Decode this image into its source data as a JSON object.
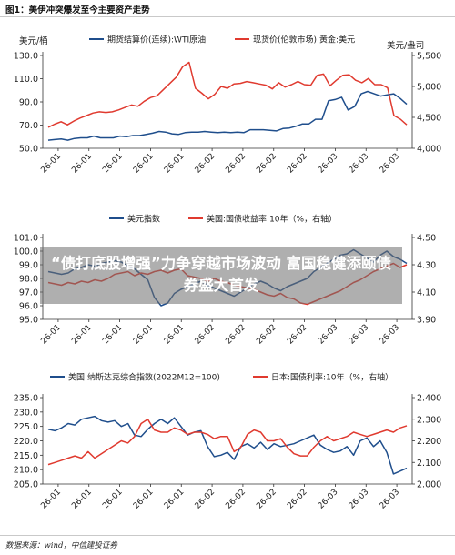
{
  "figure": {
    "title": "图1：美伊冲突爆发至今主要资产走势",
    "source": "数据来源：wind，中信建投证券"
  },
  "overlay": {
    "headline": "“债打底股增强”力争穿越市场波动 富国稳健添颐债券盛大首发"
  },
  "colors": {
    "blue": "#1f4e8c",
    "red": "#e03a2f",
    "axis": "#333333",
    "grid": "#e3e3e3"
  },
  "chart_data": [
    {
      "type": "line",
      "x_tick_labels": [
        "26-01",
        "26-01",
        "26-01",
        "26-01",
        "26-01",
        "26-02",
        "26-02",
        "26-02",
        "26-02",
        "26-03",
        "26-03",
        "26-03"
      ],
      "ylabel_left": "美元/桶",
      "ylabel_right": "美元/盎司",
      "ylim_left": [
        50,
        130
      ],
      "yticks_left": [
        "50.0",
        "70.0",
        "90.0",
        "110.0",
        "130.0"
      ],
      "ylim_right": [
        4000,
        5500
      ],
      "yticks_right": [
        "4,000",
        "4,500",
        "5,000",
        "5,500"
      ],
      "grid": false,
      "legend_position": "top",
      "series": [
        {
          "name": "期货结算价(连续):WTI原油",
          "axis": "left",
          "color": "#1f4e8c",
          "values": [
            57,
            57.5,
            58,
            57,
            58.5,
            59,
            59,
            60.5,
            59,
            59,
            59,
            60.5,
            60,
            61,
            61,
            62,
            63,
            64.5,
            64,
            62.5,
            62,
            63.5,
            64,
            64,
            64.5,
            64,
            63.5,
            64,
            63.5,
            64,
            63.5,
            66,
            66,
            66,
            65.5,
            65,
            67,
            67.5,
            69,
            71,
            71,
            75,
            75,
            91,
            92,
            94,
            83,
            86,
            97,
            99,
            97,
            95,
            96,
            97,
            93,
            88
          ]
        },
        {
          "name": "现货价(伦敦市场):黄金:美元",
          "axis": "right",
          "color": "#e03a2f",
          "values": [
            4340,
            4390,
            4430,
            4380,
            4440,
            4490,
            4530,
            4570,
            4590,
            4580,
            4590,
            4620,
            4660,
            4700,
            4680,
            4760,
            4820,
            4850,
            4950,
            5050,
            5150,
            5320,
            5390,
            4970,
            4890,
            4800,
            4870,
            5000,
            4970,
            5040,
            5050,
            5080,
            5060,
            5040,
            5020,
            4960,
            5060,
            4990,
            5030,
            5080,
            5030,
            5020,
            5180,
            5200,
            5010,
            5100,
            5180,
            5190,
            5100,
            5060,
            5130,
            5030,
            5030,
            4980,
            4530,
            4470,
            4380
          ]
        }
      ]
    },
    {
      "type": "line",
      "x_tick_labels": [
        "26-01",
        "26-01",
        "26-01",
        "26-01",
        "26-01",
        "26-02",
        "26-02",
        "26-02",
        "26-02",
        "26-03",
        "26-03",
        "26-03"
      ],
      "ylim_left": [
        95.0,
        101.0
      ],
      "yticks_left": [
        "95.0",
        "96.0",
        "97.0",
        "98.0",
        "99.0",
        "100.0",
        "101.0"
      ],
      "ylim_right": [
        3.9,
        4.5
      ],
      "yticks_right": [
        "3.90",
        "4.10",
        "4.30",
        "4.50"
      ],
      "grid": false,
      "legend_position": "top",
      "series": [
        {
          "name": "美元指数",
          "axis": "left",
          "color": "#1f4e8c",
          "values": [
            98.5,
            98.4,
            98.3,
            98.4,
            98.7,
            98.8,
            99.0,
            98.9,
            99.1,
            99.2,
            99.3,
            99.2,
            98.9,
            98.7,
            98.3,
            97.9,
            96.6,
            96.0,
            96.2,
            96.9,
            97.2,
            97.4,
            97.6,
            97.8,
            97.5,
            97.3,
            97.1,
            96.9,
            96.7,
            97.0,
            97.3,
            97.6,
            97.8,
            97.6,
            97.3,
            97.1,
            97.4,
            97.6,
            97.8,
            98.0,
            98.5,
            98.8,
            99.1,
            99.4,
            99.7,
            99.8,
            100.1,
            99.8,
            99.5,
            99.2,
            99.7,
            100.0,
            99.6,
            99.4,
            99.1
          ]
        },
        {
          "name": "美国:国债收益率:10年（%，右轴）",
          "axis": "right",
          "color": "#e03a2f",
          "values": [
            4.17,
            4.16,
            4.15,
            4.17,
            4.16,
            4.18,
            4.17,
            4.19,
            4.18,
            4.2,
            4.23,
            4.24,
            4.25,
            4.22,
            4.24,
            4.23,
            4.25,
            4.26,
            4.24,
            4.26,
            4.27,
            4.22,
            4.21,
            4.2,
            4.18,
            4.2,
            4.18,
            4.17,
            4.15,
            4.14,
            4.13,
            4.12,
            4.1,
            4.08,
            4.07,
            4.09,
            4.06,
            4.05,
            4.02,
            4.01,
            4.03,
            4.05,
            4.07,
            4.09,
            4.11,
            4.14,
            4.17,
            4.19,
            4.22,
            4.25,
            4.27,
            4.29,
            4.31,
            4.28,
            4.3
          ]
        }
      ]
    },
    {
      "type": "line",
      "x_tick_labels": [
        "26-01",
        "26-01",
        "26-01",
        "26-01",
        "26-01",
        "26-02",
        "26-02",
        "26-02",
        "26-02",
        "26-03",
        "26-03",
        "26-03"
      ],
      "ylim_left": [
        205.0,
        235.0
      ],
      "yticks_left": [
        "205.0",
        "210.0",
        "215.0",
        "220.0",
        "225.0",
        "230.0",
        "235.0"
      ],
      "ylim_right": [
        2.0,
        2.4
      ],
      "yticks_right": [
        "2.000",
        "2.100",
        "2.200",
        "2.300",
        "2.400"
      ],
      "grid": false,
      "legend_position": "top",
      "series": [
        {
          "name": "美国:纳斯达克综合指数(2022M12=100)",
          "axis": "left",
          "color": "#1f4e8c",
          "values": [
            224,
            223.5,
            224.5,
            226,
            225.5,
            227.5,
            228,
            228.5,
            227,
            226.5,
            227,
            225,
            226,
            222,
            221.5,
            224,
            226,
            227.5,
            226,
            228,
            225,
            222,
            223,
            223.5,
            218,
            214.5,
            215,
            216,
            213.5,
            218,
            219,
            217.5,
            219.5,
            217,
            219,
            218,
            218.5,
            219,
            220,
            221,
            222,
            218.5,
            217,
            216,
            216.5,
            218,
            215,
            220,
            221,
            218,
            220,
            216,
            208.5,
            209.5,
            210.5
          ]
        },
        {
          "name": "日本:国债利率:10年（%，右轴）",
          "axis": "right",
          "color": "#e03a2f",
          "values": [
            2.09,
            2.1,
            2.11,
            2.12,
            2.13,
            2.12,
            2.15,
            2.12,
            2.14,
            2.16,
            2.18,
            2.2,
            2.19,
            2.22,
            2.28,
            2.3,
            2.25,
            2.24,
            2.24,
            2.26,
            2.25,
            2.23,
            2.24,
            2.24,
            2.23,
            2.21,
            2.22,
            2.22,
            2.15,
            2.17,
            2.23,
            2.25,
            2.24,
            2.2,
            2.2,
            2.21,
            2.17,
            2.14,
            2.13,
            2.13,
            2.17,
            2.2,
            2.22,
            2.2,
            2.21,
            2.22,
            2.24,
            2.23,
            2.22,
            2.23,
            2.24,
            2.25,
            2.24,
            2.26,
            2.27
          ]
        }
      ]
    }
  ]
}
